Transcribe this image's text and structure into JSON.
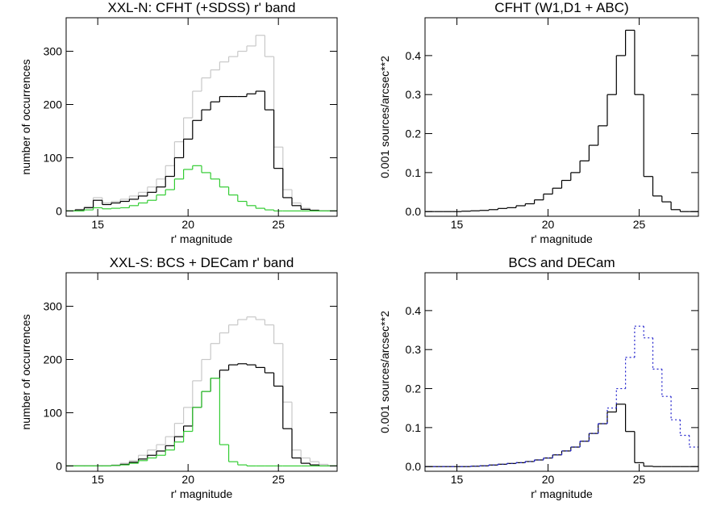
{
  "chart_data": [
    {
      "type": "histogram",
      "title": "XXL-N: CFHT (+SDSS) r' band",
      "xlabel": "r' magnitude",
      "ylabel": "number of occurrences",
      "bins": [
        13.25,
        13.75,
        14.25,
        14.75,
        15.25,
        15.75,
        16.25,
        16.75,
        17.25,
        17.75,
        18.25,
        18.75,
        19.25,
        19.75,
        20.25,
        20.75,
        21.25,
        21.75,
        22.25,
        22.75,
        23.25,
        23.75,
        24.25,
        24.75,
        25.25,
        25.75,
        26.25,
        26.75,
        27.25,
        27.75,
        28.25
      ],
      "series": [
        {
          "color": "#c8c8c8",
          "values": [
            0,
            3,
            8,
            25,
            15,
            18,
            22,
            28,
            35,
            45,
            60,
            85,
            130,
            175,
            225,
            250,
            265,
            280,
            290,
            300,
            310,
            330,
            290,
            120,
            40,
            15,
            5,
            2,
            0,
            0
          ]
        },
        {
          "color": "#000000",
          "values": [
            0,
            2,
            6,
            20,
            12,
            15,
            18,
            22,
            28,
            35,
            45,
            65,
            100,
            135,
            170,
            190,
            205,
            215,
            215,
            215,
            220,
            225,
            190,
            80,
            25,
            10,
            3,
            1,
            0,
            0
          ]
        },
        {
          "color": "#33cc33",
          "values": [
            0,
            0,
            2,
            6,
            4,
            5,
            6,
            10,
            15,
            20,
            30,
            40,
            60,
            78,
            85,
            72,
            60,
            45,
            30,
            18,
            10,
            5,
            2,
            0,
            0,
            0,
            0,
            0,
            0,
            0
          ]
        }
      ],
      "xlim": [
        13.25,
        28.25
      ],
      "ylim": [
        -10,
        363
      ],
      "xticks": [
        15,
        20,
        25
      ],
      "yticks": [
        0,
        100,
        200,
        300
      ]
    },
    {
      "type": "histogram",
      "title": "CFHT (W1,D1 + ABC)",
      "xlabel": "r' magnitude",
      "ylabel": "0.001 sources/arcsec**2",
      "bins": [
        13.25,
        13.75,
        14.25,
        14.75,
        15.25,
        15.75,
        16.25,
        16.75,
        17.25,
        17.75,
        18.25,
        18.75,
        19.25,
        19.75,
        20.25,
        20.75,
        21.25,
        21.75,
        22.25,
        22.75,
        23.25,
        23.75,
        24.25,
        24.75,
        25.25,
        25.75,
        26.25,
        26.75,
        27.25,
        27.75,
        28.25
      ],
      "series": [
        {
          "color": "#000000",
          "values": [
            0,
            0,
            0,
            0,
            0.001,
            0.002,
            0.003,
            0.005,
            0.008,
            0.01,
            0.015,
            0.02,
            0.03,
            0.045,
            0.06,
            0.08,
            0.1,
            0.13,
            0.17,
            0.22,
            0.3,
            0.4,
            0.465,
            0.3,
            0.09,
            0.04,
            0.025,
            0.005,
            0,
            0
          ]
        }
      ],
      "xlim": [
        13.25,
        28.25
      ],
      "ylim": [
        -0.012,
        0.497
      ],
      "xticks": [
        15,
        20,
        25
      ],
      "yticks": [
        {
          "value": 0,
          "label": "0.0"
        },
        0.1,
        0.2,
        0.3,
        0.4
      ]
    },
    {
      "type": "histogram",
      "title": "XXL-S: BCS + DECam  r' band",
      "xlabel": "r' magnitude",
      "ylabel": "number of occurrences",
      "bins": [
        13.25,
        13.75,
        14.25,
        14.75,
        15.25,
        15.75,
        16.25,
        16.75,
        17.25,
        17.75,
        18.25,
        18.75,
        19.25,
        19.75,
        20.25,
        20.75,
        21.25,
        21.75,
        22.25,
        22.75,
        23.25,
        23.75,
        24.25,
        24.75,
        25.25,
        25.75,
        26.25,
        26.75,
        27.25,
        27.75,
        28.25
      ],
      "series": [
        {
          "color": "#c8c8c8",
          "values": [
            0,
            0,
            0,
            0,
            0,
            2,
            5,
            10,
            20,
            30,
            40,
            55,
            80,
            110,
            160,
            200,
            230,
            250,
            265,
            275,
            280,
            275,
            265,
            230,
            120,
            30,
            15,
            8,
            3,
            0
          ]
        },
        {
          "color": "#000000",
          "values": [
            0,
            0,
            0,
            0,
            0,
            1,
            3,
            7,
            13,
            20,
            28,
            38,
            55,
            75,
            110,
            140,
            165,
            180,
            190,
            192,
            190,
            185,
            175,
            150,
            70,
            15,
            5,
            2,
            0,
            0
          ]
        },
        {
          "color": "#33cc33",
          "values": [
            0,
            0,
            0,
            0,
            0,
            1,
            2,
            5,
            10,
            15,
            20,
            30,
            45,
            65,
            110,
            140,
            165,
            40,
            8,
            2,
            0,
            0,
            0,
            0,
            0,
            0,
            0,
            0,
            0,
            0
          ]
        }
      ],
      "xlim": [
        13.25,
        28.25
      ],
      "ylim": [
        -10,
        363
      ],
      "xticks": [
        15,
        20,
        25
      ],
      "yticks": [
        0,
        100,
        200,
        300
      ]
    },
    {
      "type": "histogram",
      "title": "BCS and DECam",
      "xlabel": "r' magnitude",
      "ylabel": "0.001 sources/arcsec**2",
      "bins": [
        13.25,
        13.75,
        14.25,
        14.75,
        15.25,
        15.75,
        16.25,
        16.75,
        17.25,
        17.75,
        18.25,
        18.75,
        19.25,
        19.75,
        20.25,
        20.75,
        21.25,
        21.75,
        22.25,
        22.75,
        23.25,
        23.75,
        24.25,
        24.75,
        25.25,
        25.75,
        26.25,
        26.75,
        27.25,
        27.75,
        28.25
      ],
      "series": [
        {
          "color": "#000000",
          "values": [
            0,
            0,
            0,
            0,
            0,
            0.001,
            0.002,
            0.004,
            0.006,
            0.008,
            0.01,
            0.013,
            0.017,
            0.022,
            0.03,
            0.04,
            0.05,
            0.065,
            0.085,
            0.11,
            0.14,
            0.16,
            0.09,
            0.01,
            0.001,
            0,
            0,
            0,
            0,
            0
          ]
        },
        {
          "color": "#2222cc",
          "dotted": true,
          "values": [
            0,
            0,
            0,
            0,
            0,
            0.001,
            0.002,
            0.004,
            0.006,
            0.008,
            0.01,
            0.013,
            0.017,
            0.022,
            0.03,
            0.04,
            0.05,
            0.065,
            0.085,
            0.11,
            0.15,
            0.2,
            0.28,
            0.36,
            0.33,
            0.25,
            0.18,
            0.12,
            0.08,
            0.05
          ]
        }
      ],
      "xlim": [
        13.25,
        28.25
      ],
      "ylim": [
        -0.012,
        0.497
      ],
      "xticks": [
        15,
        20,
        25
      ],
      "yticks": [
        {
          "value": 0,
          "label": "0.0"
        },
        0.1,
        0.2,
        0.3,
        0.4
      ]
    }
  ]
}
